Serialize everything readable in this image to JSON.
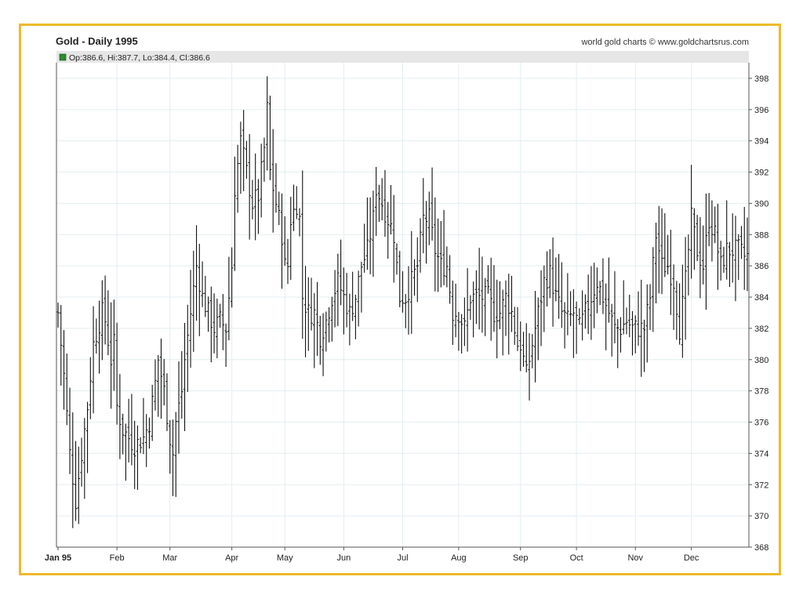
{
  "chart_data": {
    "type": "ohlc",
    "title": "Gold - Daily 1995",
    "source_credit": "world gold charts © www.goldchartsrus.com",
    "last_bar_label": "Op:386.6, Hi:387.7, Lo:384.4, Cl:386.6",
    "legend_color": "#2e8b2e",
    "ylim": [
      368,
      399
    ],
    "y_ticks": [
      "398",
      "396",
      "394",
      "392",
      "390",
      "388",
      "386",
      "384",
      "382",
      "380",
      "378",
      "376",
      "374",
      "372",
      "370",
      "368"
    ],
    "x_ticks": [
      {
        "label": "Jan 95",
        "day": 0
      },
      {
        "label": "Feb",
        "day": 20
      },
      {
        "label": "Mar",
        "day": 38
      },
      {
        "label": "Apr",
        "day": 59
      },
      {
        "label": "May",
        "day": 77
      },
      {
        "label": "Jun",
        "day": 97
      },
      {
        "label": "Jul",
        "day": 117
      },
      {
        "label": "Aug",
        "day": 136
      },
      {
        "label": "Sep",
        "day": 157
      },
      {
        "label": "Oct",
        "day": 176
      },
      {
        "label": "Nov",
        "day": 196
      },
      {
        "label": "Dec",
        "day": 215
      }
    ],
    "x_range_days": [
      0,
      234
    ],
    "grid": true,
    "anchors": [
      [
        0,
        383.0
      ],
      [
        2,
        379
      ],
      [
        4,
        374
      ],
      [
        6,
        371
      ],
      [
        8,
        374
      ],
      [
        10,
        377
      ],
      [
        12,
        381
      ],
      [
        15,
        383
      ],
      [
        16,
        382.5
      ],
      [
        18,
        380
      ],
      [
        19,
        381
      ],
      [
        20,
        377
      ],
      [
        22,
        375.5
      ],
      [
        24,
        375
      ],
      [
        26,
        374.5
      ],
      [
        29,
        375
      ],
      [
        31,
        376
      ],
      [
        33,
        378.5
      ],
      [
        34,
        380
      ],
      [
        36,
        378
      ],
      [
        38,
        375
      ],
      [
        39,
        374
      ],
      [
        40,
        376
      ],
      [
        42,
        378
      ],
      [
        43,
        380
      ],
      [
        45,
        383
      ],
      [
        47,
        386
      ],
      [
        49,
        384
      ],
      [
        51,
        383
      ],
      [
        53,
        382
      ],
      [
        55,
        382.5
      ],
      [
        57,
        382
      ],
      [
        59,
        386
      ],
      [
        60,
        391
      ],
      [
        62,
        394
      ],
      [
        64,
        392
      ],
      [
        66,
        390
      ],
      [
        68,
        390.5
      ],
      [
        70,
        393.5
      ],
      [
        71,
        396
      ],
      [
        72,
        392
      ],
      [
        74,
        390
      ],
      [
        76,
        388
      ],
      [
        77,
        386
      ],
      [
        78,
        386
      ],
      [
        79,
        389
      ],
      [
        81,
        390
      ],
      [
        82,
        389
      ],
      [
        83,
        384
      ],
      [
        85,
        383
      ],
      [
        87,
        383
      ],
      [
        89,
        381.5
      ],
      [
        91,
        382.5
      ],
      [
        93,
        384
      ],
      [
        95,
        385
      ],
      [
        97,
        384
      ],
      [
        99,
        383
      ],
      [
        101,
        384
      ],
      [
        103,
        386
      ],
      [
        105,
        387
      ],
      [
        107,
        389
      ],
      [
        108,
        391
      ],
      [
        110,
        390
      ],
      [
        112,
        389
      ],
      [
        114,
        388
      ],
      [
        115,
        386
      ],
      [
        116,
        384
      ],
      [
        118,
        384
      ],
      [
        120,
        385
      ],
      [
        122,
        386
      ],
      [
        124,
        389
      ],
      [
        126,
        389
      ],
      [
        128,
        387
      ],
      [
        130,
        386
      ],
      [
        132,
        386
      ],
      [
        134,
        383
      ],
      [
        136,
        383
      ],
      [
        138,
        382
      ],
      [
        140,
        384
      ],
      [
        142,
        384
      ],
      [
        144,
        384
      ],
      [
        146,
        384
      ],
      [
        148,
        383
      ],
      [
        150,
        383
      ],
      [
        152,
        384
      ],
      [
        154,
        383
      ],
      [
        156,
        381
      ],
      [
        157,
        381
      ],
      [
        159,
        379
      ],
      [
        161,
        381
      ],
      [
        163,
        383
      ],
      [
        165,
        385
      ],
      [
        167,
        385.5
      ],
      [
        169,
        384
      ],
      [
        171,
        383
      ],
      [
        173,
        382.5
      ],
      [
        175,
        383
      ],
      [
        177,
        382
      ],
      [
        179,
        383
      ],
      [
        181,
        384
      ],
      [
        183,
        385
      ],
      [
        185,
        384
      ],
      [
        187,
        383
      ],
      [
        189,
        382
      ],
      [
        191,
        382
      ],
      [
        193,
        382.5
      ],
      [
        195,
        382
      ],
      [
        197,
        382
      ],
      [
        199,
        382
      ],
      [
        201,
        384
      ],
      [
        203,
        388
      ],
      [
        205,
        386
      ],
      [
        207,
        386
      ],
      [
        209,
        385
      ],
      [
        211,
        382
      ],
      [
        213,
        385
      ],
      [
        215,
        389
      ],
      [
        217,
        387
      ],
      [
        219,
        386
      ],
      [
        221,
        389
      ],
      [
        223,
        388
      ],
      [
        225,
        386
      ],
      [
        227,
        387
      ],
      [
        229,
        387
      ],
      [
        231,
        387
      ],
      [
        233,
        386.6
      ]
    ]
  }
}
